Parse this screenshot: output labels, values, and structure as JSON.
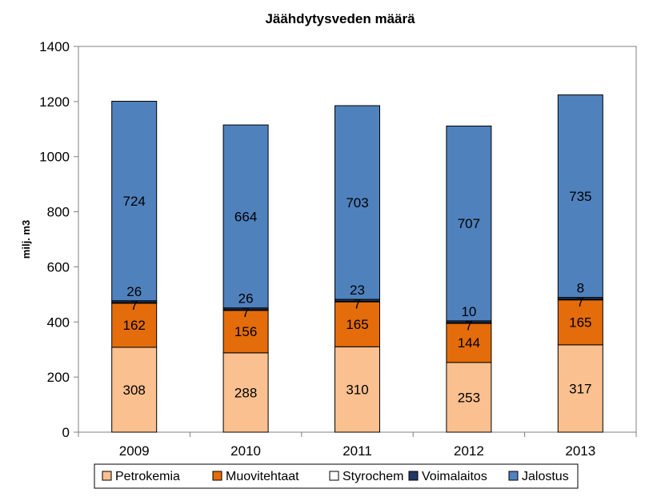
{
  "chart_data": {
    "type": "bar",
    "stacked": true,
    "title": "Jäähdytysveden määrä",
    "xlabel": "",
    "ylabel": "milj. m3",
    "categories": [
      "2009",
      "2010",
      "2011",
      "2012",
      "2013"
    ],
    "ylim": [
      0,
      1400
    ],
    "yticks": [
      0,
      200,
      400,
      600,
      800,
      1000,
      1200,
      1400
    ],
    "grid": false,
    "legend_position": "bottom",
    "series": [
      {
        "name": "Petrokemia",
        "color": "#FAC090",
        "values": [
          308,
          288,
          310,
          253,
          317
        ],
        "labels": [
          "308",
          "288",
          "310",
          "253",
          "317"
        ]
      },
      {
        "name": "Muovitehtaat",
        "color": "#E46C0A",
        "values": [
          162,
          156,
          165,
          144,
          165
        ],
        "labels": [
          "162",
          "156",
          "165",
          "144",
          "165"
        ]
      },
      {
        "name": "Styrochem",
        "color": "#FFFFFF",
        "values": [
          0,
          0,
          0,
          0,
          0
        ],
        "labels": [
          "",
          "",
          "",
          "",
          ""
        ]
      },
      {
        "name": "Voimalaitos",
        "color": "#1F3864",
        "values": [
          7,
          7,
          7,
          7,
          7
        ],
        "labels": [
          "7",
          "7",
          "7",
          "7",
          "7"
        ]
      },
      {
        "name": "Jalostus",
        "color": "#4F81BD",
        "values": [
          724,
          664,
          703,
          707,
          735
        ],
        "labels": [
          "724",
          "664",
          "703",
          "707",
          "735"
        ]
      }
    ],
    "annotations": [
      {
        "category": "2009",
        "text": "26"
      },
      {
        "category": "2010",
        "text": "26"
      },
      {
        "category": "2011",
        "text": "23"
      },
      {
        "category": "2012",
        "text": "10"
      },
      {
        "category": "2013",
        "text": "8"
      }
    ]
  }
}
